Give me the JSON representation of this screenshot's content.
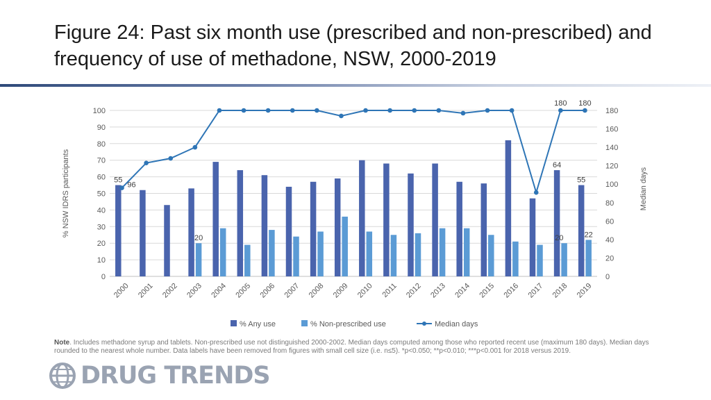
{
  "title": "Figure 24: Past six month use (prescribed and non-prescribed) and frequency of use of methadone, NSW, 2000-2019",
  "note": {
    "label": "Note",
    "text": ". Includes methadone syrup and tablets. Non-prescribed use not distinguished 2000-2002. Median days computed among those who reported recent use (maximum 180 days). Median days rounded to the nearest whole number. Data labels have been removed from figures with small cell size (i.e. n≤5). *p<0.050; **p<0.010; ***p<0.001 for 2018 versus 2019."
  },
  "logo": {
    "text": "DRUG TRENDS"
  },
  "colors": {
    "any_use": "#4a64ad",
    "non_prescribed": "#5b9bd5",
    "median": "#2e75b6",
    "title_rule": "#2f4a7a"
  },
  "chart_data": {
    "type": "bar+line",
    "categories": [
      "2000",
      "2001",
      "2002",
      "2003",
      "2004",
      "2005",
      "2006",
      "2007",
      "2008",
      "2009",
      "2010",
      "2011",
      "2012",
      "2013",
      "2014",
      "2015",
      "2016",
      "2017",
      "2018",
      "2019"
    ],
    "series": [
      {
        "name": "% Any use",
        "type": "bar",
        "axis": "left",
        "values": [
          55,
          52,
          43,
          53,
          69,
          64,
          61,
          54,
          57,
          59,
          70,
          68,
          62,
          68,
          57,
          56,
          82,
          47,
          64,
          55
        ]
      },
      {
        "name": "% Non-prescribed use",
        "type": "bar",
        "axis": "left",
        "values": [
          null,
          null,
          null,
          20,
          29,
          19,
          28,
          24,
          27,
          36,
          27,
          25,
          26,
          29,
          29,
          25,
          21,
          19,
          20,
          22
        ]
      },
      {
        "name": "Median days",
        "type": "line",
        "axis": "right",
        "values": [
          96,
          123,
          128,
          140,
          180,
          180,
          180,
          180,
          180,
          174,
          180,
          180,
          180,
          180,
          177,
          180,
          180,
          91,
          180,
          180
        ]
      }
    ],
    "data_labels": [
      {
        "series": 0,
        "index": 0,
        "text": "55"
      },
      {
        "series": 0,
        "index": 18,
        "text": "64"
      },
      {
        "series": 0,
        "index": 19,
        "text": "55"
      },
      {
        "series": 1,
        "index": 3,
        "text": "20"
      },
      {
        "series": 1,
        "index": 18,
        "text": "20"
      },
      {
        "series": 1,
        "index": 19,
        "text": "22"
      },
      {
        "series": 2,
        "index": 0,
        "text": "96"
      },
      {
        "series": 2,
        "index": 18,
        "text": "180"
      },
      {
        "series": 2,
        "index": 19,
        "text": "180"
      }
    ],
    "ylabel": "% NSW IDRS participants",
    "y2label": "Median days",
    "ylim": [
      0,
      100
    ],
    "yticks": [
      0,
      10,
      20,
      30,
      40,
      50,
      60,
      70,
      80,
      90,
      100
    ],
    "y2lim": [
      0,
      180
    ],
    "y2ticks": [
      0,
      20,
      40,
      60,
      80,
      100,
      120,
      140,
      160,
      180
    ],
    "legend_position": "bottom",
    "grid": true
  }
}
